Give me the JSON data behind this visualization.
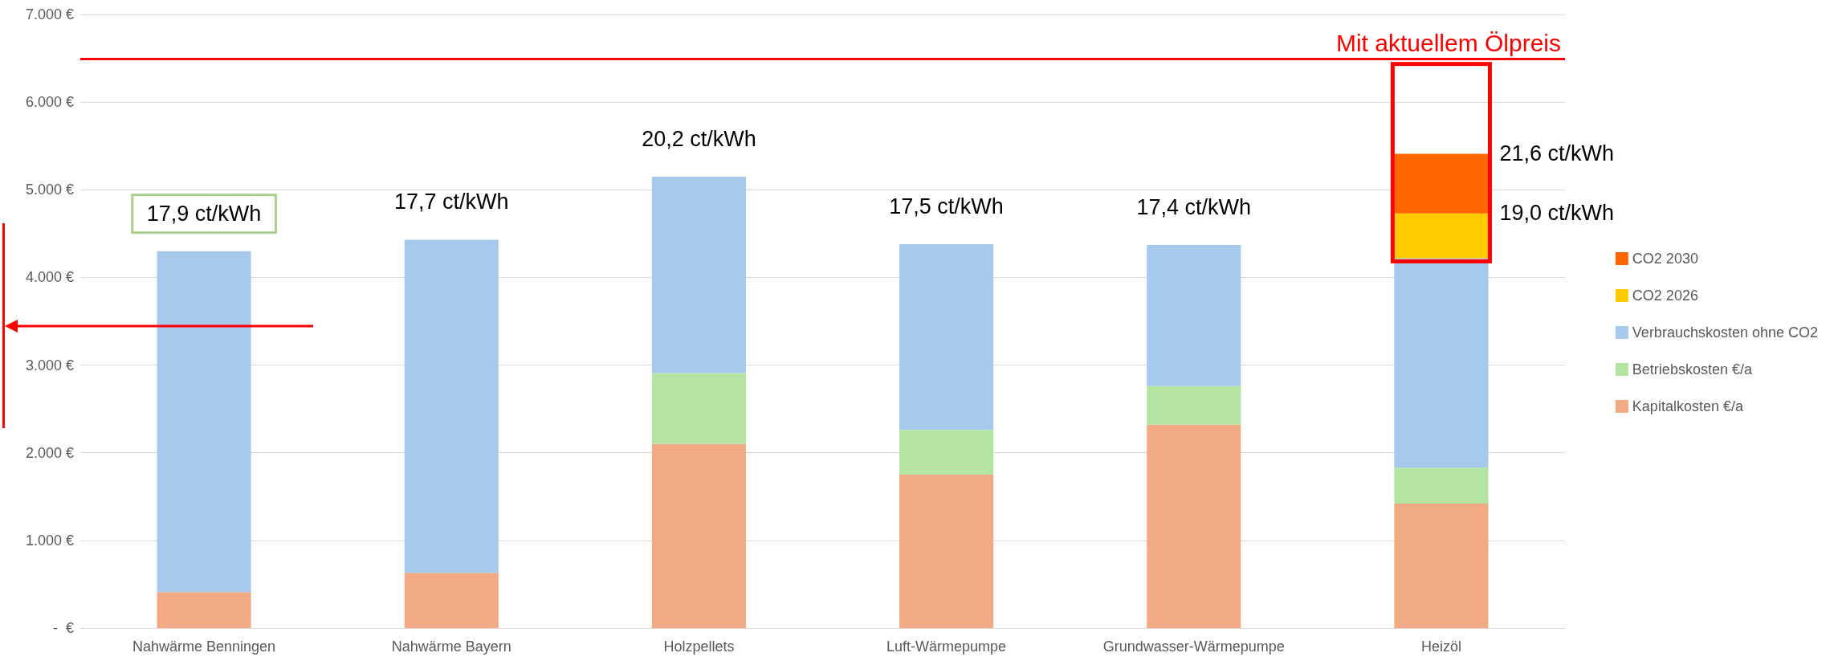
{
  "chart_data": {
    "type": "bar",
    "stacked": true,
    "categories": [
      "Nahwärme Benningen",
      "Nahwärme Bayern",
      "Holzpellets",
      "Luft-Wärmepumpe",
      "Grundwasser-Wärmepumpe",
      "Heizöl"
    ],
    "series": [
      {
        "name": "Kapitalkosten €/a",
        "color": "#f1aa84",
        "values": [
          410,
          630,
          2100,
          1750,
          2320,
          1420
        ]
      },
      {
        "name": "Betriebskosten €/a",
        "color": "#b3e4a1",
        "values": [
          null,
          null,
          810,
          510,
          440,
          410
        ]
      },
      {
        "name": "Verbrauchskosten ohne CO2",
        "color": "#a6c9ec",
        "values": [
          3890,
          3800,
          2240,
          2120,
          1610,
          2390
        ]
      },
      {
        "name": "CO2 2026",
        "color": "#ffcc00",
        "values": [
          null,
          null,
          null,
          null,
          null,
          510
        ]
      },
      {
        "name": "CO2 2030",
        "color": "#ff6600",
        "values": [
          null,
          null,
          null,
          null,
          null,
          680
        ]
      }
    ],
    "ylim": [
      0,
      7000
    ],
    "yticks": [
      {
        "value": 0,
        "label": "-  €"
      },
      {
        "value": 1000,
        "label": "1.000 €"
      },
      {
        "value": 2000,
        "label": "2.000 €"
      },
      {
        "value": 3000,
        "label": "3.000 €"
      },
      {
        "value": 4000,
        "label": "4.000 €"
      },
      {
        "value": 5000,
        "label": "5.000 €"
      },
      {
        "value": 6000,
        "label": "6.000 €"
      },
      {
        "value": 7000,
        "label": "7.000 €"
      }
    ],
    "grid": "y",
    "legend": "right",
    "ref_lines": [
      {
        "axis": "y",
        "value": 6490,
        "label": "Mit aktuellem Ölpreis",
        "color": "#ff0000"
      }
    ],
    "annotations": [
      {
        "text": "17,9 ct/kWh",
        "x": "Nahwärme Benningen",
        "y": 4300
      },
      {
        "text": "17,7 ct/kWh",
        "x": "Nahwärme Bayern",
        "y": 4430
      },
      {
        "text": "20,2 ct/kWh",
        "x": "Holzpellets",
        "y": 5150
      },
      {
        "text": "17,5 ct/kWh",
        "x": "Luft-Wärmepumpe",
        "y": 4380
      },
      {
        "text": "17,4 ct/kWh",
        "x": "Grundwasser-Wärmepumpe",
        "y": 4370
      },
      {
        "text": "21,6 ct/kWh",
        "x": "Heizöl",
        "y": 5410
      },
      {
        "text": "19,0 ct/kWh",
        "x": "Heizöl",
        "y": 4730
      }
    ]
  }
}
